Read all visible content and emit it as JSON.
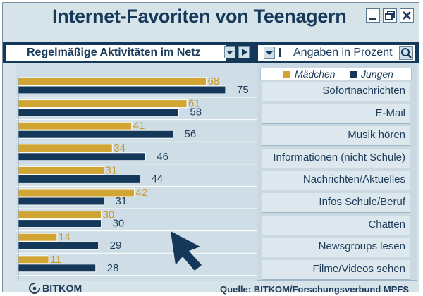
{
  "window": {
    "title": "Internet-Favoriten von Teenagern"
  },
  "toolbar": {
    "selected_view": "Regelmäßige Aktivitäten im Netz",
    "unit_label": "Angaben in Prozent"
  },
  "legend": [
    {
      "label": "Mädchen",
      "color": "#d1a534"
    },
    {
      "label": "Jungen",
      "color": "#14385a"
    }
  ],
  "chart_data": {
    "type": "bar",
    "orientation": "horizontal",
    "title": "Internet-Favoriten von Teenagern",
    "subtitle": "Regelmäßige Aktivitäten im Netz",
    "unit": "Angaben in Prozent",
    "categories": [
      "Sofortnachrichten",
      "E-Mail",
      "Musik hören",
      "Informationen (nicht Schule)",
      "Nachrichten/Aktuelles",
      "Infos Schule/Beruf",
      "Chatten",
      "Newsgroups lesen",
      "Filme/Videos sehen"
    ],
    "series": [
      {
        "name": "Mädchen",
        "color": "#d1a534",
        "values": [
          68,
          61,
          41,
          34,
          31,
          42,
          30,
          14,
          11
        ]
      },
      {
        "name": "Jungen",
        "color": "#14385a",
        "values": [
          75,
          58,
          56,
          46,
          44,
          31,
          30,
          29,
          28
        ]
      }
    ],
    "xlim": [
      0,
      80
    ],
    "legend_position": "top-right",
    "source": "Quelle: BITKOM/Forschungsverbund MPFS"
  },
  "footer": {
    "logo_text": "BITKOM",
    "source": "Quelle: BITKOM/Forschungsverbund MPFS"
  },
  "icons": {
    "minimize": "minimize-icon",
    "restore": "restore-icon",
    "close": "close-icon",
    "search": "search-icon",
    "pointer": "mouse-pointer-icon",
    "logo": "bitkom-logo-icon"
  }
}
